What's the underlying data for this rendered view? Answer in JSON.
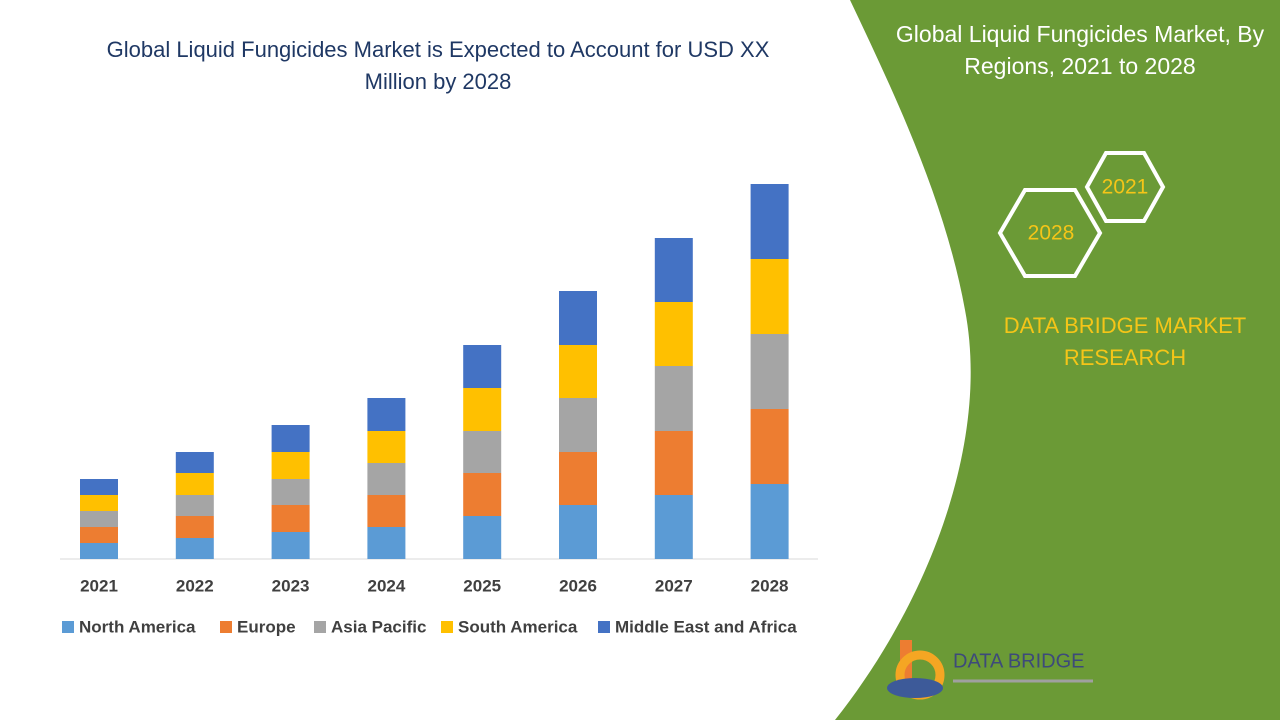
{
  "chart_data": {
    "type": "stacked-bar",
    "title": "Global Liquid Fungicides Market is Expected to Account for USD XX Million by 2028",
    "categories": [
      "2021",
      "2022",
      "2023",
      "2024",
      "2025",
      "2026",
      "2027",
      "2028"
    ],
    "series": [
      {
        "name": "North America",
        "color": "#5b9bd5",
        "values": [
          16,
          21,
          27,
          32,
          43,
          54,
          64,
          75
        ]
      },
      {
        "name": "Europe",
        "color": "#ed7d31",
        "values": [
          16,
          22,
          27,
          32,
          43,
          53,
          64,
          75
        ]
      },
      {
        "name": "Asia Pacific",
        "color": "#a5a5a5",
        "values": [
          16,
          21,
          26,
          32,
          42,
          54,
          65,
          75
        ]
      },
      {
        "name": "South America",
        "color": "#ffc000",
        "values": [
          16,
          22,
          27,
          32,
          43,
          53,
          64,
          75
        ]
      },
      {
        "name": "Middle East and Africa",
        "color": "#4472c4",
        "values": [
          16,
          21,
          27,
          33,
          43,
          54,
          64,
          75
        ]
      }
    ]
  },
  "panel": {
    "title": "Global Liquid Fungicides Market, By Regions, 2021 to 2028",
    "hex_start": "2021",
    "hex_end": "2028",
    "brand": "DATA BRIDGE MARKET RESEARCH",
    "logo_text": "DATA BRIDGE"
  }
}
